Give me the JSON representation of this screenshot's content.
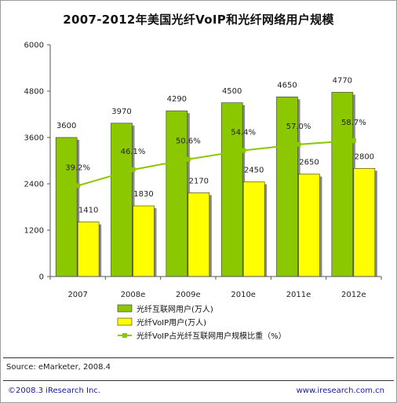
{
  "title": "2007-2012年美国光纤VoIP和光纤网络用户规模",
  "footer": {
    "source": "Source: eMarketer, 2008.4",
    "copyright": "©2008.3  iResearch Inc.",
    "website": "www.iresearch.com.cn"
  },
  "chart_data": {
    "type": "bar",
    "categories": [
      "2007",
      "2008e",
      "2009e",
      "2010e",
      "2011e",
      "2012e"
    ],
    "series": [
      {
        "name": "光纤互联网用户(万人)",
        "kind": "bar",
        "color": "#8cc800",
        "values": [
          3600,
          3970,
          4290,
          4500,
          4650,
          4770
        ]
      },
      {
        "name": "光纤VoIP用户(万人)",
        "kind": "bar",
        "color": "#ffff00",
        "values": [
          1410,
          1830,
          2170,
          2450,
          2650,
          2800
        ]
      },
      {
        "name": "光纤VoIP占光纤互联网用户规模比重（%）",
        "kind": "line",
        "color": "#8cc800",
        "values": [
          39.2,
          46.1,
          50.6,
          54.4,
          57.0,
          58.7
        ],
        "labels": [
          "39.2%",
          "46.1%",
          "50.6%",
          "54.4%",
          "57.0%",
          "58.7%"
        ]
      }
    ],
    "ylim": [
      0,
      6000
    ],
    "yticks": [
      0,
      1200,
      2400,
      3600,
      4800,
      6000
    ],
    "secondary_ylim": [
      0,
      100
    ],
    "grid": false,
    "legend_position": "bottom"
  }
}
